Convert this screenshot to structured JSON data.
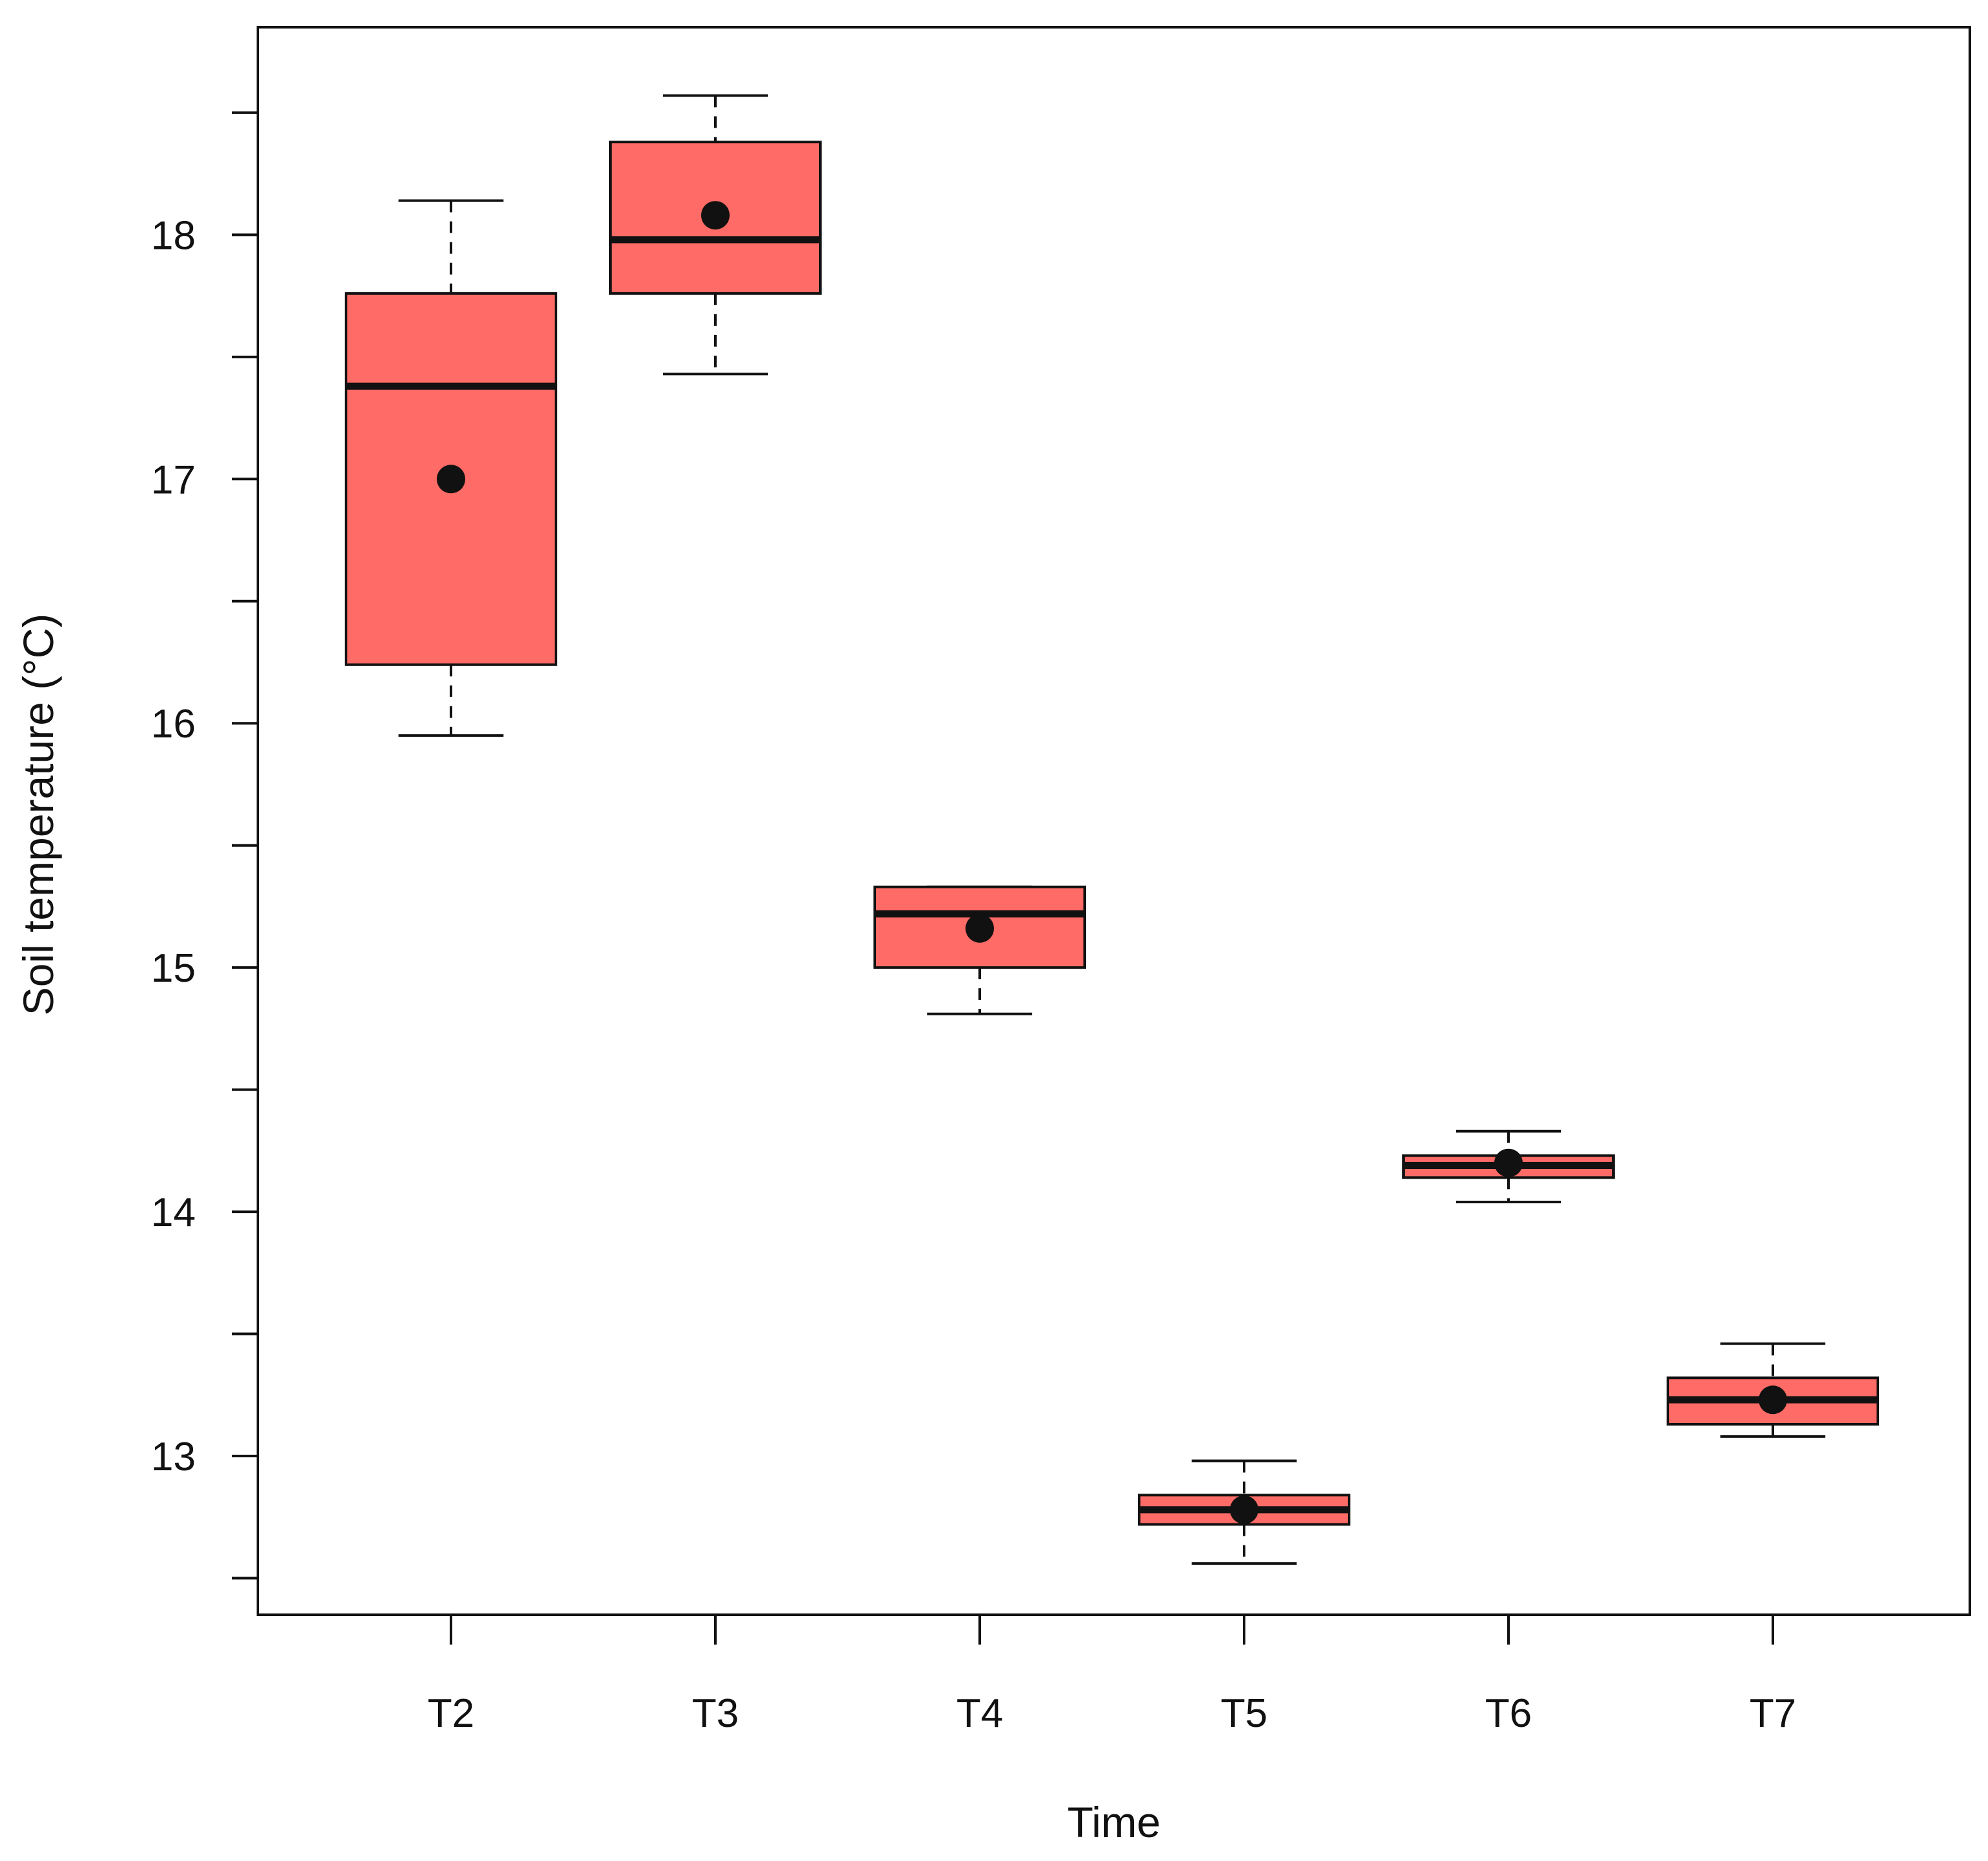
{
  "chart_data": {
    "type": "box",
    "title": "",
    "xlabel": "Time",
    "ylabel": "Soil temperature (°C)",
    "ylim": [
      12.35,
      18.85
    ],
    "y_ticks": [
      12.5,
      13,
      13.5,
      14,
      14.5,
      15,
      15.5,
      16,
      16.5,
      17,
      17.5,
      18,
      18.5
    ],
    "y_tick_labels": [
      "13",
      "14",
      "15",
      "16",
      "17",
      "18"
    ],
    "y_tick_label_values": [
      13,
      14,
      15,
      16,
      17,
      18
    ],
    "categories": [
      "T2",
      "T3",
      "T4",
      "T5",
      "T6",
      "T7"
    ],
    "boxes": [
      {
        "category": "T2",
        "whisker_low": 15.95,
        "q1": 16.24,
        "median": 17.38,
        "q3": 17.76,
        "whisker_high": 18.14,
        "mean": 17.0
      },
      {
        "category": "T3",
        "whisker_low": 17.43,
        "q1": 17.76,
        "median": 17.98,
        "q3": 18.38,
        "whisker_high": 18.57,
        "mean": 18.08
      },
      {
        "category": "T4",
        "whisker_low": 14.81,
        "q1": 15.0,
        "median": 15.22,
        "q3": 15.33,
        "whisker_high": 15.33,
        "mean": 15.16
      },
      {
        "category": "T5",
        "whisker_low": 12.56,
        "q1": 12.72,
        "median": 12.78,
        "q3": 12.84,
        "whisker_high": 12.98,
        "mean": 12.78
      },
      {
        "category": "T6",
        "whisker_low": 14.04,
        "q1": 14.14,
        "median": 14.19,
        "q3": 14.23,
        "whisker_high": 14.33,
        "mean": 14.2
      },
      {
        "category": "T7",
        "whisker_low": 13.08,
        "q1": 13.13,
        "median": 13.23,
        "q3": 13.32,
        "whisker_high": 13.46,
        "mean": 13.23
      }
    ],
    "grid": false,
    "legend": "none"
  },
  "colors": {
    "box_fill": "#ff6b66",
    "stroke": "#111111",
    "background": "#ffffff"
  }
}
